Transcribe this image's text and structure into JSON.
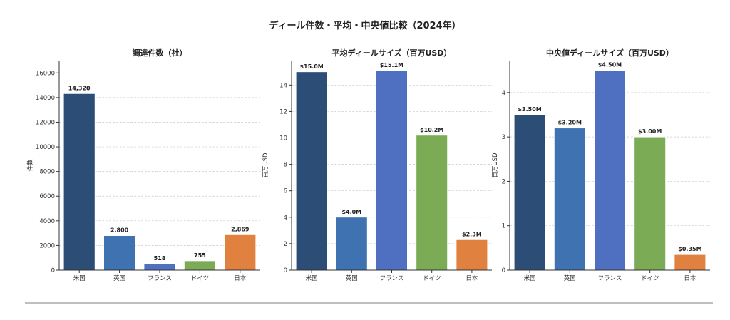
{
  "chart_data": [
    {
      "type": "bar",
      "title": "調達件数（社）",
      "ylabel": "件数",
      "xlabel": "",
      "categories": [
        "米国",
        "英国",
        "フランス",
        "ドイツ",
        "日本"
      ],
      "values": [
        14320,
        2800,
        518,
        755,
        2869
      ],
      "labels": [
        "14,320",
        "2,800",
        "518",
        "755",
        "2,869"
      ],
      "ylim": [
        0,
        17000
      ],
      "yticks": [
        0,
        2000,
        4000,
        6000,
        8000,
        10000,
        12000,
        14000,
        16000
      ],
      "grid": true
    },
    {
      "type": "bar",
      "title": "平均ディールサイズ（百万USD）",
      "ylabel": "百万USD",
      "xlabel": "",
      "categories": [
        "米国",
        "英国",
        "フランス",
        "ドイツ",
        "日本"
      ],
      "values": [
        15.0,
        4.0,
        15.1,
        10.2,
        2.3
      ],
      "labels": [
        "$15.0M",
        "$4.0M",
        "$15.1M",
        "$10.2M",
        "$2.3M"
      ],
      "ylim": [
        0,
        15.85
      ],
      "yticks": [
        0,
        2,
        4,
        6,
        8,
        10,
        12,
        14
      ],
      "grid": true
    },
    {
      "type": "bar",
      "title": "中央値ディールサイズ（百万USD）",
      "ylabel": "百万USD",
      "xlabel": "",
      "categories": [
        "米国",
        "英国",
        "フランス",
        "ドイツ",
        "日本"
      ],
      "values": [
        3.5,
        3.2,
        4.5,
        3.0,
        0.35
      ],
      "labels": [
        "$3.50M",
        "$3.20M",
        "$4.50M",
        "$3.00M",
        "$0.35M"
      ],
      "ylim": [
        0,
        4.72
      ],
      "yticks": [
        0,
        1,
        2,
        3,
        4
      ],
      "grid": true
    }
  ],
  "suptitle": "ディール件数・平均・中央値比較（2024年）",
  "colors": [
    "#2c4d75",
    "#3e72b0",
    "#4f70c0",
    "#7bab55",
    "#e0813f"
  ]
}
